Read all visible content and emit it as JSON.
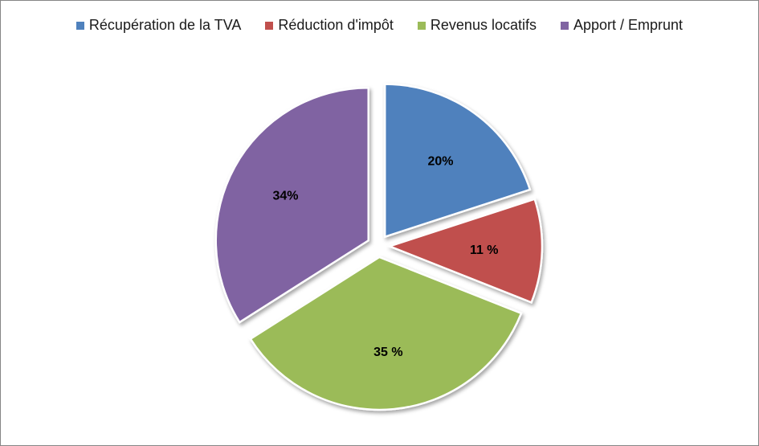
{
  "chart_data": {
    "type": "pie",
    "categories": [
      "Récupération de la TVA",
      "Réduction d'impôt",
      "Revenus locatifs",
      "Apport / Emprunt"
    ],
    "values": [
      20,
      11,
      35,
      34
    ],
    "data_labels": [
      "20%",
      "11 %",
      "35 %",
      "34%"
    ],
    "colors": [
      "#4f81bd",
      "#c0504d",
      "#9bbb59",
      "#8064a2"
    ],
    "legend_position": "top",
    "exploded": true
  }
}
